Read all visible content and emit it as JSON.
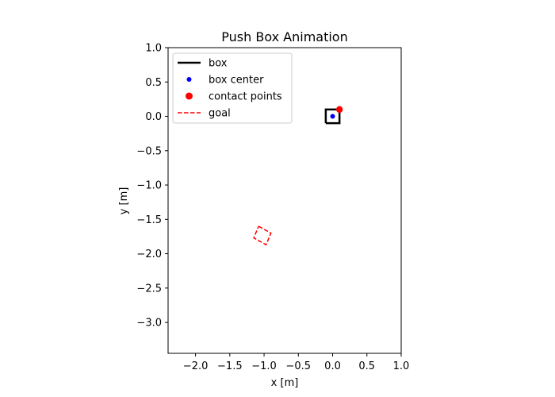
{
  "chart_data": {
    "type": "scatter",
    "title": "Push Box Animation",
    "xlabel": "x [m]",
    "ylabel": "y [m]",
    "xlim": [
      -2.4,
      1.0
    ],
    "ylim": [
      -3.45,
      1.0
    ],
    "xticks": [
      -2.0,
      -1.5,
      -1.0,
      -0.5,
      0.0,
      0.5,
      1.0
    ],
    "xtick_labels": [
      "−2.0",
      "−1.5",
      "−1.0",
      "−0.5",
      "0.0",
      "0.5",
      "1.0"
    ],
    "yticks": [
      1.0,
      0.5,
      0.0,
      -0.5,
      -1.0,
      -1.5,
      -2.0,
      -2.5,
      -3.0
    ],
    "ytick_labels": [
      "1.0",
      "0.5",
      "0.0",
      "−0.5",
      "−1.0",
      "−1.5",
      "−2.0",
      "−2.5",
      "−3.0"
    ],
    "grid": false,
    "legend_position": "top-left",
    "series": [
      {
        "name": "box",
        "kind": "line",
        "color": "#000000",
        "points": [
          [
            -0.1,
            -0.1
          ],
          [
            0.1,
            -0.1
          ],
          [
            0.1,
            0.1
          ],
          [
            -0.1,
            0.1
          ],
          [
            -0.1,
            -0.1
          ]
        ]
      },
      {
        "name": "box center",
        "kind": "scatter",
        "color": "#0000ff",
        "points": [
          [
            0.0,
            0.0
          ]
        ]
      },
      {
        "name": "contact points",
        "kind": "scatter",
        "color": "#ff0000",
        "points": [
          [
            0.1,
            0.1
          ]
        ]
      },
      {
        "name": "goal",
        "kind": "dashed-line",
        "color": "#ff0000",
        "points": [
          [
            -1.08,
            -1.6
          ],
          [
            -0.9,
            -1.7
          ],
          [
            -0.97,
            -1.87
          ],
          [
            -1.15,
            -1.77
          ],
          [
            -1.08,
            -1.6
          ]
        ]
      }
    ]
  }
}
